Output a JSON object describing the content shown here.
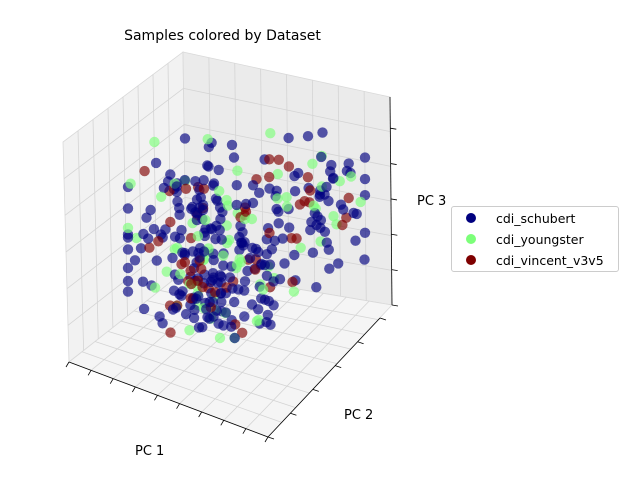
{
  "chart_data": {
    "type": "scatter",
    "title": "Samples colored by Dataset",
    "xlabel": "PC 1",
    "ylabel": "PC 2",
    "zlabel": "PC 3",
    "projection": "3d",
    "grid": true,
    "legend_position": "right",
    "series": [
      {
        "name": "cdi_schubert",
        "color": "#00007f"
      },
      {
        "name": "cdi_youngster",
        "color": "#7cff79"
      },
      {
        "name": "cdi_vincent_v3v5",
        "color": "#7f0000"
      }
    ]
  }
}
